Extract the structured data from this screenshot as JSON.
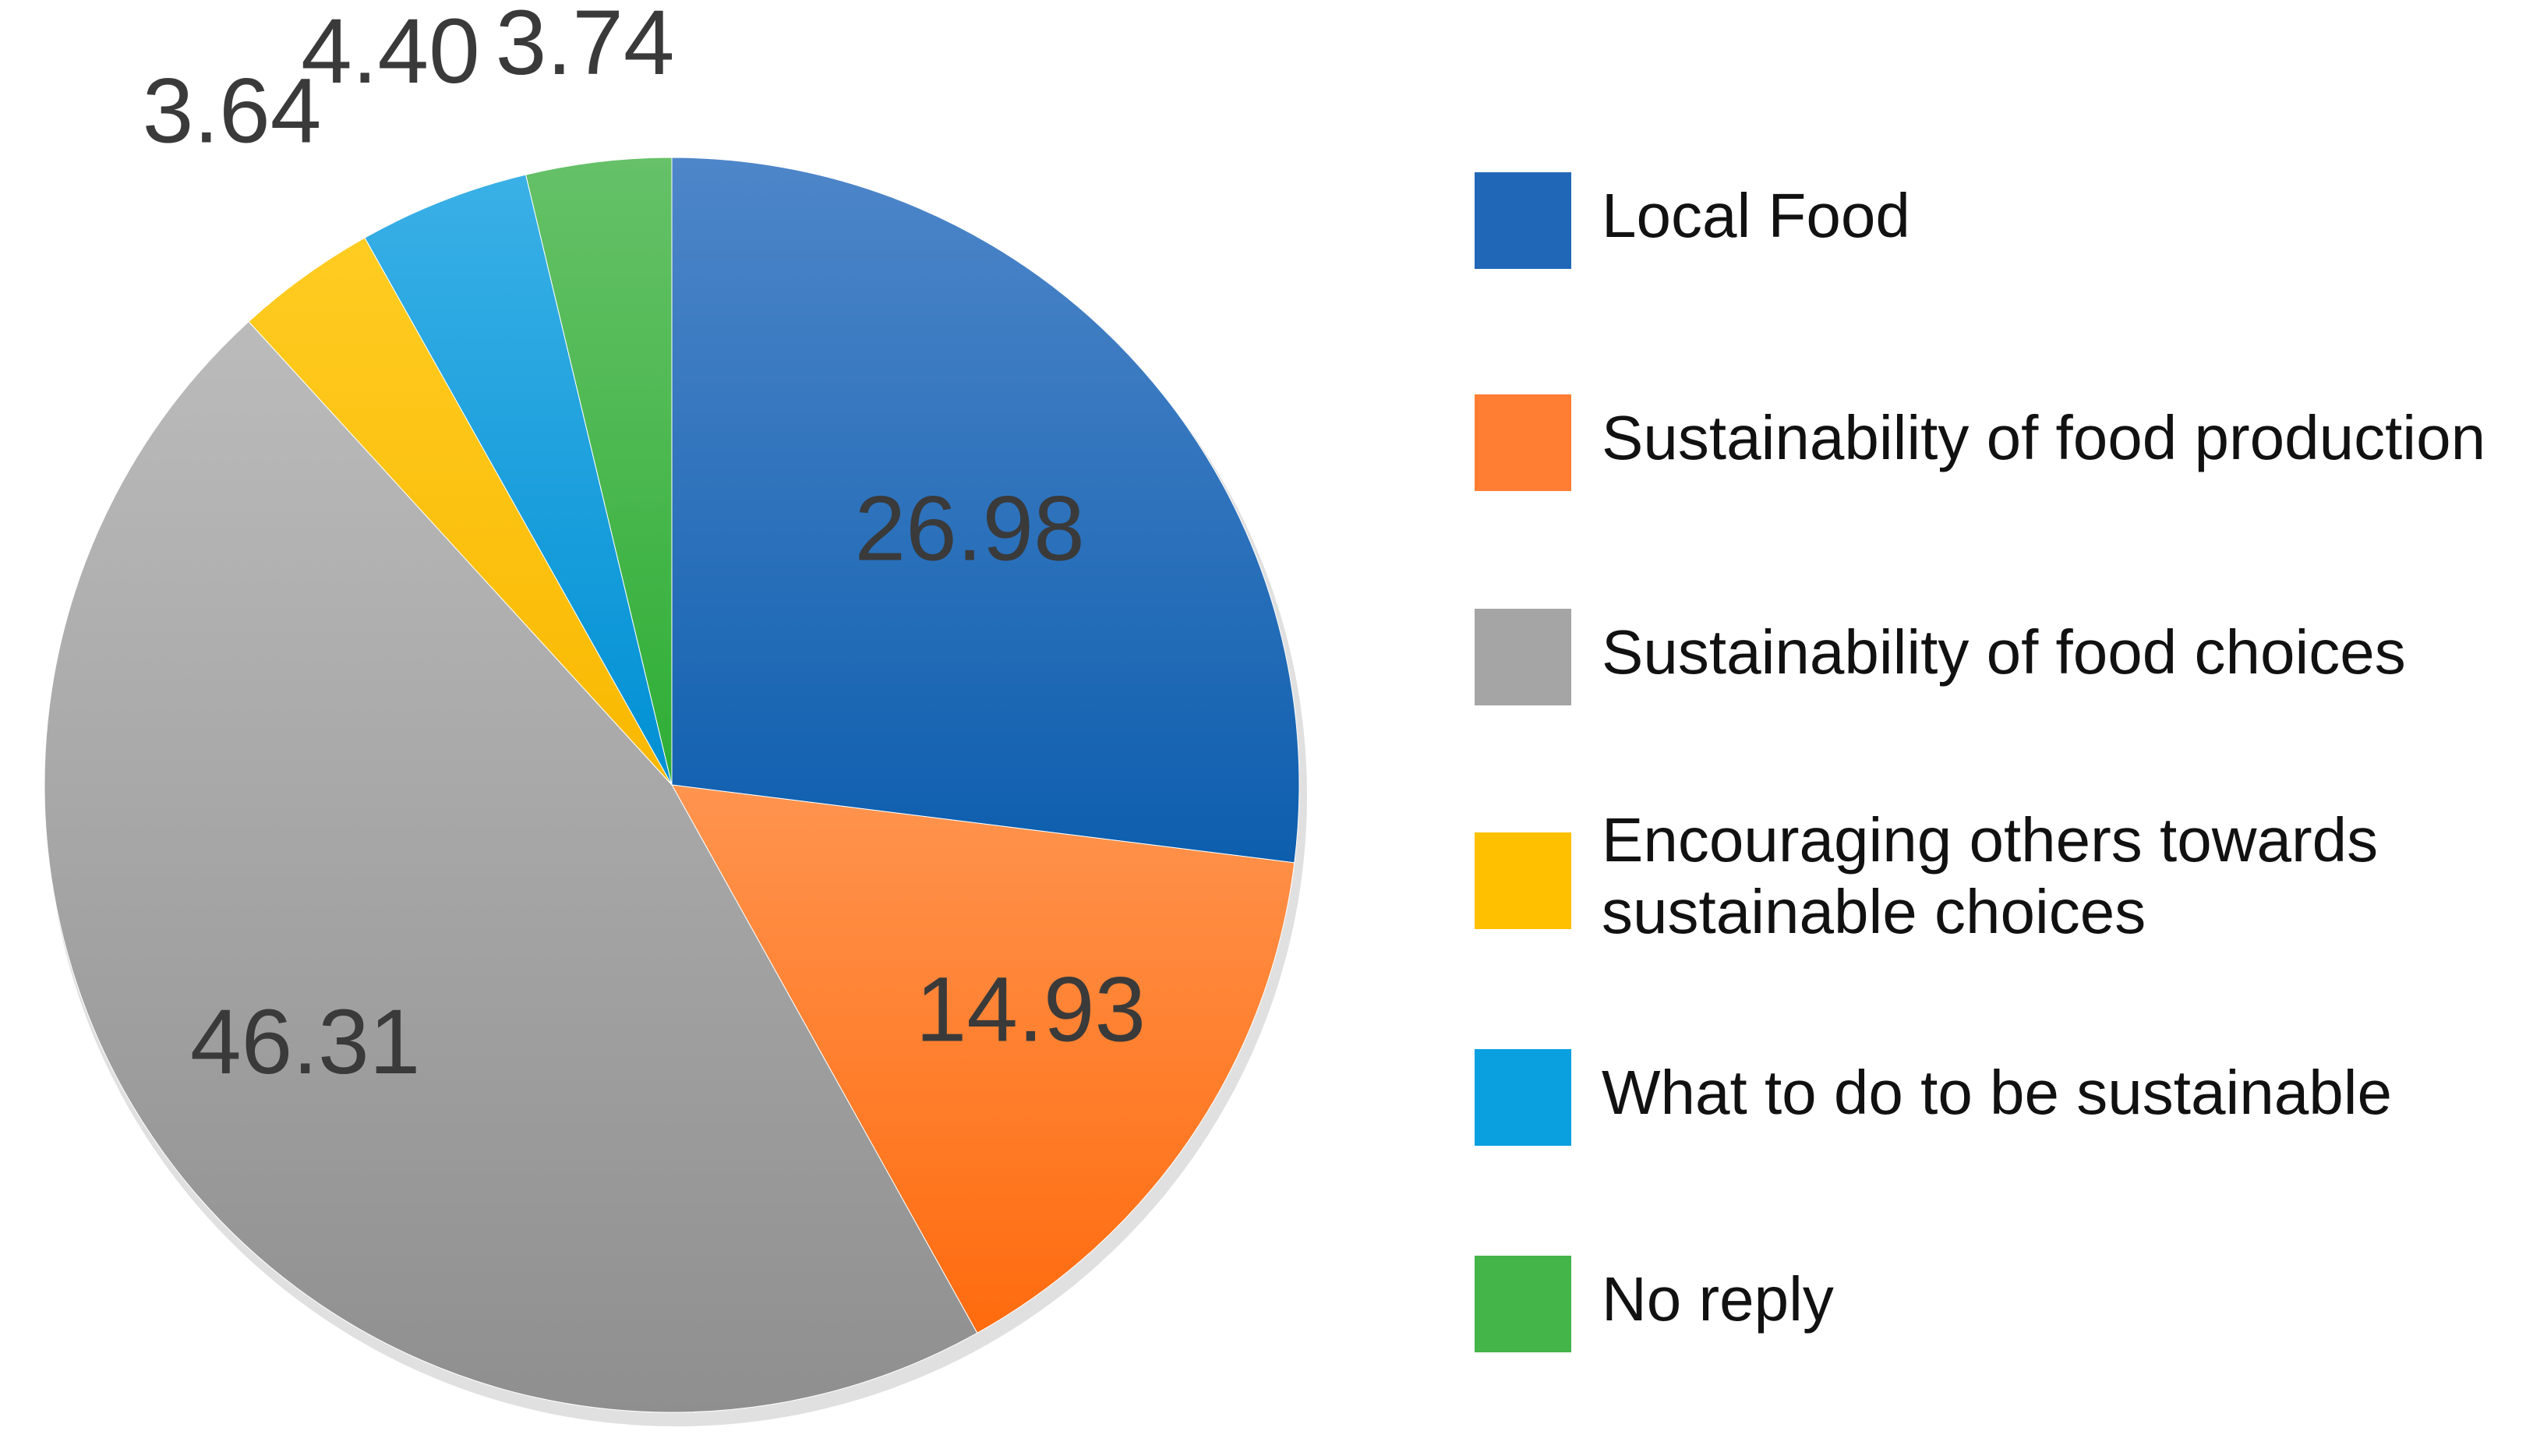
{
  "chart_data": {
    "type": "pie",
    "title": "",
    "start_angle": "12 o'clock",
    "direction": "clockwise",
    "legend_position": "right",
    "slices": [
      {
        "name": "Local Food",
        "value": 26.98,
        "label": "26.98",
        "color": "#2167B8",
        "color_light": "#4E86C9",
        "color_dark": "#0D5EAE",
        "legend_lines": [
          "Local Food"
        ]
      },
      {
        "name": "Sustainability of food production",
        "value": 14.93,
        "label": "14.93",
        "color": "#FF7E33",
        "color_light": "#FF944F",
        "color_dark": "#FF6B0E",
        "legend_lines": [
          "Sustainability of food production"
        ]
      },
      {
        "name": "Sustainability of food choices",
        "value": 46.31,
        "label": "46.31",
        "color": "#A5A5A5",
        "color_light": "#BBBBBB",
        "color_dark": "#8F8F8F",
        "legend_lines": [
          "Sustainability of food choices"
        ]
      },
      {
        "name": "Encouraging others towards sustainable choices",
        "value": 3.64,
        "label": "3.64",
        "color": "#FFC000",
        "color_light": "#FFCC22",
        "color_dark": "#F9B800",
        "legend_lines": [
          "Encouraging others towards",
          "sustainable choices"
        ]
      },
      {
        "name": "What to do to be sustainable",
        "value": 4.4,
        "label": "4.40",
        "color": "#0AA0E0",
        "color_light": "#3AB0E6",
        "color_dark": "#0090D4",
        "legend_lines": [
          "What to do to be sustainable"
        ]
      },
      {
        "name": "No reply",
        "value": 3.74,
        "label": "3.74",
        "color": "#44B548",
        "color_light": "#66C168",
        "color_dark": "#2EAE35",
        "legend_lines": [
          "No reply"
        ]
      }
    ]
  }
}
